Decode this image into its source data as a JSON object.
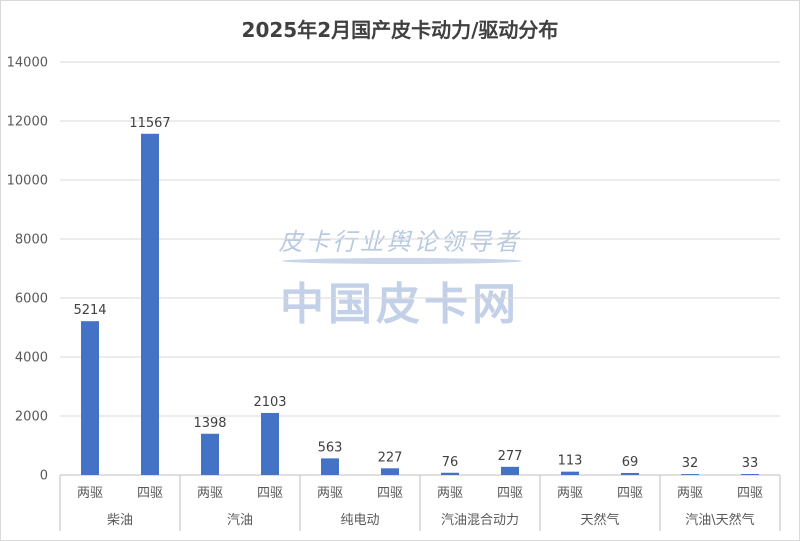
{
  "chart_data": {
    "type": "bar",
    "title": "2025年2月国产皮卡动力/驱动分布",
    "watermark": [
      "皮卡行业舆论领导者",
      "中国皮卡网"
    ],
    "groups": [
      "柴油",
      "汽油",
      "纯电动",
      "汽油混合动力",
      "天然气",
      "汽油\\天然气"
    ],
    "subcategories": [
      "两驱",
      "四驱"
    ],
    "values": [
      [
        5214,
        11567
      ],
      [
        1398,
        2103
      ],
      [
        563,
        227
      ],
      [
        76,
        277
      ],
      [
        113,
        69
      ],
      [
        32,
        33
      ]
    ],
    "yticks": [
      0,
      2000,
      4000,
      6000,
      8000,
      10000,
      12000,
      14000
    ],
    "ylim": [
      0,
      14000
    ],
    "grid": true,
    "xlabel": "",
    "ylabel": "",
    "bar_color": "#4472c4"
  }
}
